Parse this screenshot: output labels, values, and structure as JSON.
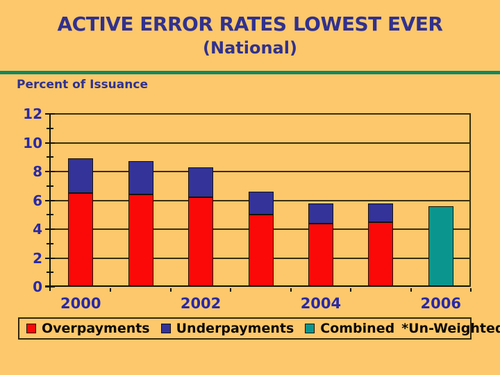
{
  "title": "ACTIVE ERROR RATES LOWEST EVER",
  "subtitle": "(National)",
  "axis_caption": "Percent of Issuance",
  "colors": {
    "background": "#FCC86B",
    "title_text": "#31318E",
    "divider_line": "#10875F",
    "axis_label_text": "#2929A6",
    "legend_text": "#0D0A05",
    "overpayments": "#FB0909",
    "underpayments": "#333399",
    "combined": "#0A968F"
  },
  "legend": {
    "items": [
      {
        "label": "Overpayments",
        "color": "#FB0909"
      },
      {
        "label": "Underpayments",
        "color": "#333399"
      },
      {
        "label": "Combined",
        "color": "#0A968F"
      }
    ],
    "note": "*Un-Weighted"
  },
  "chart_data": {
    "type": "bar",
    "stacked": true,
    "title": "ACTIVE ERROR RATES LOWEST EVER (National)",
    "ylabel": "Percent of Issuance",
    "categories": [
      "2000",
      "2001",
      "2002",
      "2003",
      "2004",
      "2005",
      "2006"
    ],
    "series": [
      {
        "name": "Overpayments",
        "color": "#FB0909",
        "values": [
          6.5,
          6.4,
          6.2,
          5.0,
          4.4,
          4.5,
          null
        ]
      },
      {
        "name": "Underpayments",
        "color": "#333399",
        "values": [
          2.4,
          2.3,
          2.1,
          1.6,
          1.4,
          1.3,
          null
        ]
      },
      {
        "name": "Combined",
        "color": "#0A968F",
        "values": [
          null,
          null,
          null,
          null,
          null,
          null,
          5.6
        ]
      }
    ],
    "stacked_totals": [
      8.9,
      8.7,
      8.3,
      6.6,
      5.8,
      5.8,
      5.6
    ],
    "ylim": [
      0,
      12
    ],
    "y_tick_step": 2,
    "y_minor_tick_step": 1,
    "x_ticks": [
      {
        "index": 0,
        "label": "2000"
      },
      {
        "index": 2,
        "label": "2002"
      },
      {
        "index": 4,
        "label": "2004"
      },
      {
        "index": 6,
        "label": "2006"
      }
    ],
    "grid": true,
    "legend_position": "bottom"
  }
}
